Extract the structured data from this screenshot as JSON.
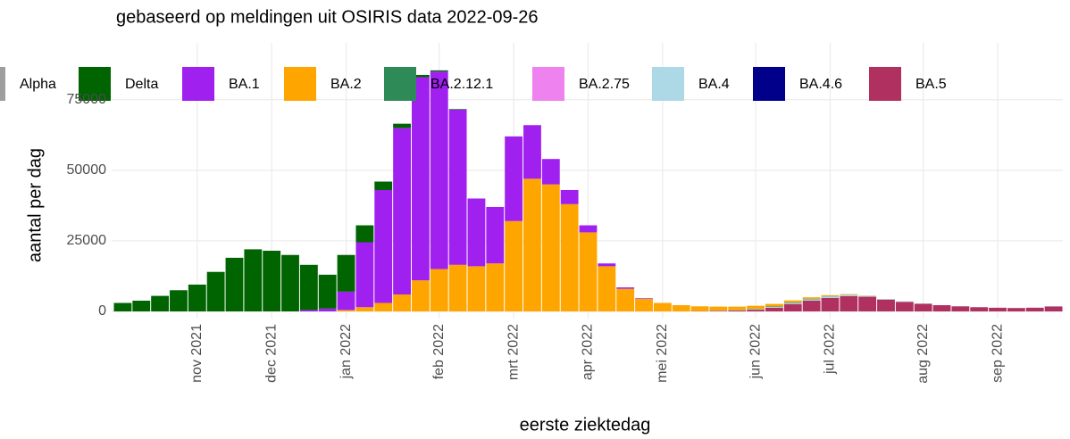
{
  "chart_data": {
    "type": "stacked-bar",
    "title": "gebaseerd op meldingen uit OSIRIS data 2022-09-26",
    "x_label": "eerste ziektedag",
    "y_label": "aantal per dag",
    "categories": [
      null,
      null,
      null,
      null,
      "nov 2021",
      null,
      null,
      null,
      "dec 2021",
      null,
      null,
      null,
      "jan 2022",
      null,
      null,
      null,
      null,
      "feb 2022",
      null,
      null,
      null,
      "mrt 2022",
      null,
      null,
      null,
      "apr 2022",
      null,
      null,
      null,
      "mei 2022",
      null,
      null,
      null,
      null,
      "jun 2022",
      null,
      null,
      null,
      "jul 2022",
      null,
      null,
      null,
      null,
      "aug 2022",
      null,
      null,
      null,
      "sep 2022",
      null,
      null,
      null
    ],
    "ylim": [
      0,
      92000
    ],
    "yticks": [
      0,
      25000,
      50000,
      75000
    ],
    "grid": true,
    "series": [
      {
        "name": "Alpha",
        "color": "#9e9e9e",
        "values": [
          0,
          0,
          0,
          0,
          0,
          0,
          0,
          0,
          0,
          0,
          0,
          0,
          0,
          0,
          0,
          0,
          0,
          0,
          0,
          0,
          0,
          0,
          0,
          0,
          0,
          0,
          0,
          0,
          0,
          0,
          0,
          0,
          0,
          0,
          0,
          0,
          0,
          0,
          0,
          0,
          0,
          0,
          0,
          0,
          0,
          0,
          0,
          0,
          0,
          0,
          0
        ]
      },
      {
        "name": "Delta",
        "color": "#006400",
        "values": [
          3000,
          3800,
          5500,
          7500,
          9500,
          14000,
          19000,
          22000,
          21500,
          20000,
          16000,
          12000,
          13000,
          6000,
          3000,
          1500,
          800,
          400,
          200,
          0,
          0,
          0,
          0,
          0,
          0,
          0,
          0,
          0,
          0,
          0,
          0,
          0,
          0,
          0,
          0,
          0,
          0,
          0,
          0,
          0,
          0,
          0,
          0,
          0,
          0,
          0,
          0,
          0,
          0,
          0,
          0
        ]
      },
      {
        "name": "BA.1",
        "color": "#a020f0",
        "values": [
          0,
          0,
          0,
          0,
          0,
          0,
          0,
          0,
          0,
          0,
          500,
          1000,
          6500,
          23000,
          40000,
          59000,
          72000,
          70000,
          55000,
          24000,
          20000,
          30000,
          19000,
          9000,
          5000,
          2500,
          1000,
          500,
          200,
          0,
          0,
          0,
          0,
          0,
          0,
          0,
          0,
          0,
          0,
          0,
          0,
          0,
          0,
          0,
          0,
          0,
          0,
          0,
          0,
          0,
          0
        ]
      },
      {
        "name": "BA.2",
        "color": "#ffa500",
        "values": [
          0,
          0,
          0,
          0,
          0,
          0,
          0,
          0,
          0,
          0,
          0,
          0,
          500,
          1500,
          3000,
          6000,
          11000,
          15000,
          16500,
          16000,
          17000,
          32000,
          47000,
          45000,
          38000,
          28000,
          16000,
          8000,
          4500,
          3000,
          2200,
          1700,
          1400,
          1200,
          1100,
          900,
          700,
          500,
          300,
          200,
          100,
          0,
          0,
          0,
          0,
          0,
          0,
          0,
          0,
          0,
          0
        ]
      },
      {
        "name": "BA.2.12.1",
        "color": "#2e8b57",
        "values": [
          0,
          0,
          0,
          0,
          0,
          0,
          0,
          0,
          0,
          0,
          0,
          0,
          0,
          0,
          0,
          0,
          0,
          0,
          0,
          0,
          0,
          0,
          0,
          0,
          0,
          0,
          0,
          0,
          0,
          0,
          0,
          0,
          0,
          100,
          100,
          150,
          200,
          200,
          150,
          100,
          0,
          0,
          0,
          0,
          0,
          0,
          0,
          0,
          0,
          0,
          0
        ]
      },
      {
        "name": "BA.2.75",
        "color": "#ee82ee",
        "values": [
          0,
          0,
          0,
          0,
          0,
          0,
          0,
          0,
          0,
          0,
          0,
          0,
          0,
          0,
          0,
          0,
          0,
          0,
          0,
          0,
          0,
          0,
          0,
          0,
          0,
          0,
          0,
          0,
          0,
          0,
          0,
          0,
          0,
          0,
          0,
          0,
          0,
          0,
          0,
          0,
          0,
          0,
          0,
          0,
          0,
          0,
          0,
          0,
          0,
          30,
          50
        ]
      },
      {
        "name": "BA.4",
        "color": "#add8e6",
        "values": [
          0,
          0,
          0,
          0,
          0,
          0,
          0,
          0,
          0,
          0,
          0,
          0,
          0,
          0,
          0,
          0,
          0,
          0,
          0,
          0,
          0,
          0,
          0,
          0,
          0,
          0,
          0,
          0,
          0,
          0,
          0,
          0,
          100,
          100,
          200,
          300,
          400,
          500,
          500,
          400,
          300,
          200,
          150,
          100,
          0,
          0,
          0,
          0,
          0,
          0,
          0
        ]
      },
      {
        "name": "BA.4.6",
        "color": "#00008b",
        "values": [
          0,
          0,
          0,
          0,
          0,
          0,
          0,
          0,
          0,
          0,
          0,
          0,
          0,
          0,
          0,
          0,
          0,
          0,
          0,
          0,
          0,
          0,
          0,
          0,
          0,
          0,
          0,
          0,
          0,
          0,
          0,
          0,
          0,
          0,
          0,
          0,
          0,
          0,
          0,
          0,
          0,
          0,
          0,
          0,
          0,
          0,
          0,
          0,
          0,
          0,
          50
        ]
      },
      {
        "name": "BA.5",
        "color": "#b03060",
        "values": [
          0,
          0,
          0,
          0,
          0,
          0,
          0,
          0,
          0,
          0,
          0,
          0,
          0,
          0,
          0,
          0,
          0,
          0,
          0,
          0,
          0,
          0,
          0,
          0,
          0,
          0,
          0,
          0,
          0,
          0,
          0,
          100,
          200,
          300,
          600,
          1300,
          2600,
          3800,
          4800,
          5400,
          5200,
          4200,
          3400,
          2700,
          2200,
          1800,
          1500,
          1300,
          1200,
          1300,
          1700
        ]
      }
    ]
  }
}
